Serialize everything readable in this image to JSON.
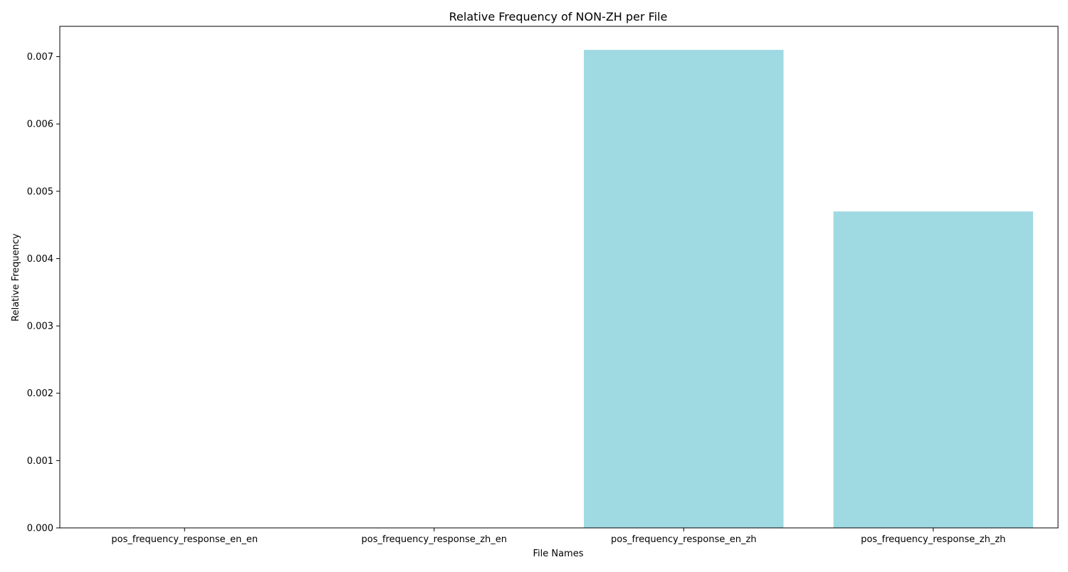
{
  "chart_data": {
    "type": "bar",
    "title": "Relative Frequency of NON-ZH per File",
    "xlabel": "File Names",
    "ylabel": "Relative Frequency",
    "categories": [
      "pos_frequency_response_en_en",
      "pos_frequency_response_zh_en",
      "pos_frequency_response_en_zh",
      "pos_frequency_response_zh_zh"
    ],
    "values": [
      0,
      0,
      0.0071,
      0.0047
    ],
    "ylim": [
      0,
      0.00745
    ],
    "yticks": [
      0.0,
      0.001,
      0.002,
      0.003,
      0.004,
      0.005,
      0.006,
      0.007
    ],
    "ytick_labels": [
      "0.000",
      "0.001",
      "0.002",
      "0.003",
      "0.004",
      "0.005",
      "0.006",
      "0.007"
    ],
    "bar_color": "#9fdae3",
    "grid": false,
    "legend": "none"
  }
}
